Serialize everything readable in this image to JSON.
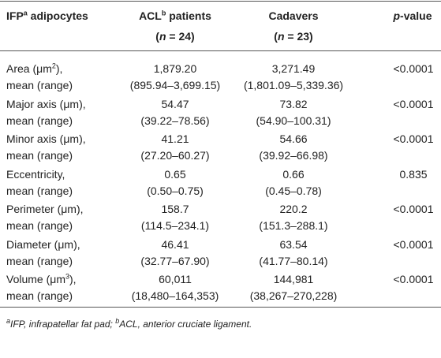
{
  "table": {
    "header": {
      "col1": [
        "IFP",
        "a",
        " adipocytes"
      ],
      "col2": [
        "ACL",
        "b",
        " patients"
      ],
      "col2_n": [
        "(",
        "n",
        " = 24)"
      ],
      "col3": "Cadavers",
      "col3_n": [
        "(",
        "n",
        " = 23)"
      ],
      "col4": [
        "p",
        "-value"
      ]
    },
    "rows": [
      {
        "label": [
          "Area (μm",
          "2",
          "),"
        ],
        "sublabel": "mean (range)",
        "acl": "1,879.20",
        "acl_range": "(895.94–3,699.15)",
        "cad": "3,271.49",
        "cad_range": "(1,801.09–5,339.36)",
        "p": "<0.0001"
      },
      {
        "label": [
          "Major axis (μm),"
        ],
        "sublabel": "mean (range)",
        "acl": "54.47",
        "acl_range": "(39.22–78.56)",
        "cad": "73.82",
        "cad_range": "(54.90–100.31)",
        "p": "<0.0001"
      },
      {
        "label": [
          "Minor axis (μm),"
        ],
        "sublabel": "mean (range)",
        "acl": "41.21",
        "acl_range": "(27.20–60.27)",
        "cad": "54.66",
        "cad_range": "(39.92–66.98)",
        "p": "<0.0001"
      },
      {
        "label": [
          "Eccentricity,"
        ],
        "sublabel": "mean (range)",
        "acl": "0.65",
        "acl_range": "(0.50–0.75)",
        "cad": "0.66",
        "cad_range": "(0.45–0.78)",
        "p": "0.835"
      },
      {
        "label": [
          "Perimeter (μm),"
        ],
        "sublabel": "mean (range)",
        "acl": "158.7",
        "acl_range": "(114.5–234.1)",
        "cad": "220.2",
        "cad_range": "(151.3–288.1)",
        "p": "<0.0001"
      },
      {
        "label": [
          "Diameter (μm),"
        ],
        "sublabel": "mean (range)",
        "acl": "46.41",
        "acl_range": "(32.77–67.90)",
        "cad": "63.54",
        "cad_range": "(41.77–80.14)",
        "p": "<0.0001"
      },
      {
        "label": [
          "Volume (μm",
          "3",
          "),"
        ],
        "sublabel": "mean (range)",
        "acl": "60,011",
        "acl_range": "(18,480–164,353)",
        "cad": "144,981",
        "cad_range": "(38,267–270,228)",
        "p": "<0.0001"
      }
    ],
    "footnote": [
      "a",
      "IFP, infrapatellar fat pad; ",
      "b",
      "ACL, anterior cruciate ligament."
    ]
  }
}
